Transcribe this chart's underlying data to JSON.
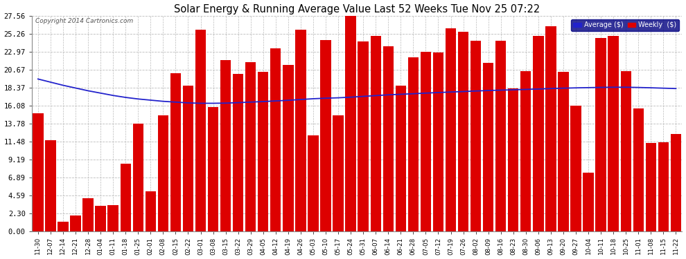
{
  "title": "Solar Energy & Running Average Value Last 52 Weeks Tue Nov 25 07:22",
  "copyright": "Copyright 2014 Cartronics.com",
  "bar_color": "#dd0000",
  "avg_line_color": "#2222cc",
  "background_color": "#ffffff",
  "grid_color": "#bbbbbb",
  "ytick_values": [
    0.0,
    2.3,
    4.59,
    6.89,
    9.19,
    11.48,
    13.78,
    16.08,
    18.37,
    20.67,
    22.97,
    25.26,
    27.56
  ],
  "ylim_max": 27.56,
  "categories": [
    "11-30",
    "12-07",
    "12-14",
    "12-21",
    "12-28",
    "01-04",
    "01-11",
    "01-18",
    "01-25",
    "02-01",
    "02-08",
    "02-15",
    "02-22",
    "03-01",
    "03-08",
    "03-15",
    "03-22",
    "03-29",
    "04-05",
    "04-12",
    "04-19",
    "04-26",
    "05-03",
    "05-10",
    "05-17",
    "05-24",
    "05-31",
    "06-07",
    "06-14",
    "06-21",
    "06-28",
    "07-05",
    "07-12",
    "07-19",
    "07-26",
    "08-02",
    "08-09",
    "08-16",
    "08-23",
    "08-30",
    "09-06",
    "09-13",
    "09-20",
    "09-27",
    "10-04",
    "10-11",
    "10-18",
    "10-25",
    "11-01",
    "11-08",
    "11-15",
    "11-22"
  ],
  "weekly_values": [
    15.134,
    11.657,
    1.236,
    2.043,
    4.248,
    3.29,
    3.392,
    8.686,
    13.774,
    5.134,
    14.839,
    20.27,
    18.64,
    25.765,
    15.936,
    21.891,
    20.156,
    21.624,
    20.451,
    23.404,
    21.293,
    25.844,
    12.306,
    24.484,
    14.874,
    27.559,
    24.346,
    25.001,
    23.707,
    18.677,
    22.278,
    22.976,
    22.92,
    25.939,
    25.5,
    24.415,
    21.56,
    24.356,
    18.26,
    20.487,
    24.981,
    26.248,
    20.393,
    16.096,
    7.502,
    24.746,
    25.025,
    20.487,
    15.726,
    11.346,
    11.375,
    12.486
  ],
  "avg_values": [
    19.5,
    19.1,
    18.7,
    18.35,
    18.0,
    17.7,
    17.4,
    17.15,
    16.95,
    16.8,
    16.65,
    16.55,
    16.45,
    16.4,
    16.4,
    16.42,
    16.48,
    16.55,
    16.62,
    16.7,
    16.78,
    16.88,
    16.98,
    17.05,
    17.1,
    17.18,
    17.28,
    17.38,
    17.48,
    17.55,
    17.62,
    17.7,
    17.77,
    17.84,
    17.9,
    17.97,
    18.03,
    18.08,
    18.12,
    18.17,
    18.22,
    18.28,
    18.33,
    18.37,
    18.4,
    18.43,
    18.45,
    18.45,
    18.42,
    18.38,
    18.33,
    18.28
  ],
  "legend_bg_color": "#000080",
  "legend_avg_label": "Average ($)",
  "legend_weekly_label": "Weekly  ($)"
}
